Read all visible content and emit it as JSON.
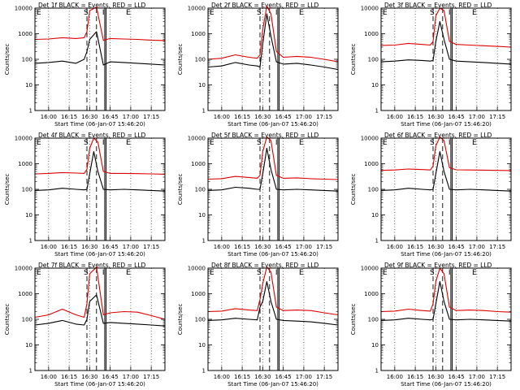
{
  "figure": {
    "y_axis_label": "Counts/sec",
    "x_axis_label": "Start Time (06-Jan-07 15:46:20)",
    "x_tick_labels": [
      "16:00",
      "16:15",
      "16:30",
      "16:45",
      "17:00",
      "17:15"
    ],
    "y_tick_labels": [
      "1",
      "10",
      "100",
      "1000",
      "10000"
    ],
    "marker_letters": [
      "E",
      "S",
      "I",
      "E"
    ],
    "colors": {
      "events": "#000000",
      "lld": "#dd0000",
      "axes": "#000000"
    }
  },
  "chart_data": [
    {
      "type": "line",
      "title": "Det 1f BLACK = Events, RED = LLD",
      "xlabel": "Start Time (06-Jan-07 15:46:20)",
      "ylabel": "Counts/sec",
      "y_scale": "log",
      "ylim": [
        1,
        10000
      ],
      "xlim": [
        "15:50",
        "17:25"
      ],
      "x_ticks": [
        "16:00",
        "16:15",
        "16:30",
        "16:45",
        "17:00",
        "17:15"
      ],
      "dashed_lines": [
        "16:28",
        "16:35"
      ],
      "solid_lines": [
        "16:41",
        "16:42"
      ],
      "series": [
        {
          "name": "Events",
          "color": "#000000",
          "x": [
            "15:50",
            "16:00",
            "16:10",
            "16:20",
            "16:26",
            "16:28",
            "16:30",
            "16:35",
            "16:40",
            "16:45",
            "16:55",
            "17:05",
            "17:15",
            "17:25"
          ],
          "y": [
            70,
            75,
            85,
            70,
            100,
            200,
            600,
            1200,
            60,
            80,
            75,
            70,
            65,
            60
          ]
        },
        {
          "name": "LLD",
          "color": "#dd0000",
          "x": [
            "15:50",
            "16:00",
            "16:10",
            "16:20",
            "16:26",
            "16:28",
            "16:30",
            "16:35",
            "16:40",
            "16:45",
            "16:55",
            "17:05",
            "17:15",
            "17:25"
          ],
          "y": [
            600,
            620,
            700,
            650,
            700,
            1200,
            8000,
            11000,
            550,
            650,
            620,
            600,
            560,
            540
          ]
        }
      ]
    },
    {
      "type": "line",
      "title": "Det 2f BLACK = Events, RED = LLD",
      "xlabel": "Start Time (06-Jan-07 15:46:20)",
      "ylabel": "Counts/sec",
      "y_scale": "log",
      "ylim": [
        1,
        10000
      ],
      "xlim": [
        "15:50",
        "17:25"
      ],
      "x_ticks": [
        "16:00",
        "16:15",
        "16:30",
        "16:45",
        "17:00",
        "17:15"
      ],
      "dashed_lines": [
        "16:28",
        "16:35"
      ],
      "solid_lines": [
        "16:41",
        "16:42"
      ],
      "series": [
        {
          "name": "Events",
          "color": "#000000",
          "x": [
            "15:50",
            "16:00",
            "16:10",
            "16:20",
            "16:26",
            "16:28",
            "16:30",
            "16:33",
            "16:36",
            "16:40",
            "16:45",
            "16:55",
            "17:05",
            "17:15",
            "17:25"
          ],
          "y": [
            50,
            55,
            75,
            60,
            55,
            50,
            400,
            6000,
            800,
            80,
            65,
            70,
            60,
            50,
            40
          ]
        },
        {
          "name": "LLD",
          "color": "#dd0000",
          "x": [
            "15:50",
            "16:00",
            "16:10",
            "16:20",
            "16:26",
            "16:28",
            "16:30",
            "16:33",
            "16:36",
            "16:40",
            "16:45",
            "16:55",
            "17:05",
            "17:15",
            "17:25"
          ],
          "y": [
            100,
            110,
            150,
            120,
            110,
            150,
            1500,
            12000,
            6000,
            200,
            120,
            130,
            120,
            100,
            80
          ]
        }
      ]
    },
    {
      "type": "line",
      "title": "Det 3f BLACK = Events, RED = LLD",
      "xlabel": "Start Time (06-Jan-07 15:46:20)",
      "ylabel": "Counts/sec",
      "y_scale": "log",
      "ylim": [
        1,
        10000
      ],
      "xlim": [
        "15:50",
        "17:25"
      ],
      "x_ticks": [
        "16:00",
        "16:15",
        "16:30",
        "16:45",
        "17:00",
        "17:15"
      ],
      "dashed_lines": [
        "16:28",
        "16:35"
      ],
      "solid_lines": [
        "16:41",
        "16:42"
      ],
      "series": [
        {
          "name": "Events",
          "color": "#000000",
          "x": [
            "15:50",
            "16:00",
            "16:10",
            "16:20",
            "16:26",
            "16:28",
            "16:30",
            "16:33",
            "16:36",
            "16:40",
            "16:45",
            "16:55",
            "17:05",
            "17:15",
            "17:25"
          ],
          "y": [
            80,
            85,
            95,
            90,
            85,
            90,
            500,
            3000,
            600,
            100,
            85,
            80,
            75,
            70,
            65
          ]
        },
        {
          "name": "LLD",
          "color": "#dd0000",
          "x": [
            "15:50",
            "16:00",
            "16:10",
            "16:20",
            "16:26",
            "16:28",
            "16:30",
            "16:33",
            "16:36",
            "16:40",
            "16:45",
            "16:55",
            "17:05",
            "17:15",
            "17:25"
          ],
          "y": [
            350,
            360,
            420,
            380,
            360,
            500,
            5000,
            10000,
            8000,
            500,
            380,
            360,
            340,
            320,
            300
          ]
        }
      ]
    },
    {
      "type": "line",
      "title": "Det 4f BLACK = Events, RED = LLD",
      "xlabel": "Start Time (06-Jan-07 15:46:20)",
      "ylabel": "Counts/sec",
      "y_scale": "log",
      "ylim": [
        1,
        10000
      ],
      "xlim": [
        "15:50",
        "17:25"
      ],
      "x_ticks": [
        "16:00",
        "16:15",
        "16:30",
        "16:45",
        "17:00",
        "17:15"
      ],
      "dashed_lines": [
        "16:28",
        "16:35"
      ],
      "solid_lines": [
        "16:41",
        "16:42"
      ],
      "series": [
        {
          "name": "Events",
          "color": "#000000",
          "x": [
            "15:50",
            "16:00",
            "16:10",
            "16:20",
            "16:26",
            "16:28",
            "16:30",
            "16:33",
            "16:36",
            "16:40",
            "16:45",
            "16:55",
            "17:05",
            "17:15",
            "17:25"
          ],
          "y": [
            90,
            95,
            110,
            100,
            95,
            100,
            400,
            3000,
            500,
            100,
            95,
            100,
            95,
            90,
            85
          ]
        },
        {
          "name": "LLD",
          "color": "#dd0000",
          "x": [
            "15:50",
            "16:00",
            "16:10",
            "16:20",
            "16:26",
            "16:28",
            "16:30",
            "16:33",
            "16:36",
            "16:40",
            "16:45",
            "16:55",
            "17:05",
            "17:15",
            "17:25"
          ],
          "y": [
            400,
            420,
            450,
            430,
            420,
            600,
            4000,
            10000,
            7000,
            500,
            420,
            420,
            410,
            400,
            390
          ]
        }
      ]
    },
    {
      "type": "line",
      "title": "Det 5f BLACK = Events, RED = LLD",
      "xlabel": "Start Time (06-Jan-07 15:46:20)",
      "ylabel": "Counts/sec",
      "y_scale": "log",
      "ylim": [
        1,
        10000
      ],
      "xlim": [
        "15:50",
        "17:25"
      ],
      "x_ticks": [
        "16:00",
        "16:15",
        "16:30",
        "16:45",
        "17:00",
        "17:15"
      ],
      "dashed_lines": [
        "16:28",
        "16:35"
      ],
      "solid_lines": [
        "16:41",
        "16:42"
      ],
      "series": [
        {
          "name": "Events",
          "color": "#000000",
          "x": [
            "15:50",
            "16:00",
            "16:10",
            "16:20",
            "16:26",
            "16:28",
            "16:30",
            "16:33",
            "16:36",
            "16:40",
            "16:45",
            "16:55",
            "17:05",
            "17:15",
            "17:25"
          ],
          "y": [
            90,
            95,
            120,
            110,
            100,
            100,
            400,
            4000,
            600,
            100,
            95,
            100,
            95,
            90,
            85
          ]
        },
        {
          "name": "LLD",
          "color": "#dd0000",
          "x": [
            "15:50",
            "16:00",
            "16:10",
            "16:20",
            "16:26",
            "16:28",
            "16:30",
            "16:33",
            "16:36",
            "16:40",
            "16:45",
            "16:55",
            "17:05",
            "17:15",
            "17:25"
          ],
          "y": [
            250,
            260,
            320,
            290,
            270,
            350,
            3000,
            11000,
            8000,
            350,
            270,
            280,
            260,
            250,
            240
          ]
        }
      ]
    },
    {
      "type": "line",
      "title": "Det 6f BLACK = Events, RED = LLD",
      "xlabel": "Start Time (06-Jan-07 15:46:20)",
      "ylabel": "Counts/sec",
      "y_scale": "log",
      "ylim": [
        1,
        10000
      ],
      "xlim": [
        "15:50",
        "17:25"
      ],
      "x_ticks": [
        "16:00",
        "16:15",
        "16:30",
        "16:45",
        "17:00",
        "17:15"
      ],
      "dashed_lines": [
        "16:28",
        "16:35"
      ],
      "solid_lines": [
        "16:41",
        "16:42"
      ],
      "series": [
        {
          "name": "Events",
          "color": "#000000",
          "x": [
            "15:50",
            "16:00",
            "16:10",
            "16:20",
            "16:26",
            "16:28",
            "16:30",
            "16:33",
            "16:36",
            "16:40",
            "16:45",
            "16:55",
            "17:05",
            "17:15",
            "17:25"
          ],
          "y": [
            90,
            95,
            110,
            100,
            95,
            100,
            400,
            3000,
            500,
            100,
            95,
            100,
            95,
            90,
            85
          ]
        },
        {
          "name": "LLD",
          "color": "#dd0000",
          "x": [
            "15:50",
            "16:00",
            "16:10",
            "16:20",
            "16:26",
            "16:28",
            "16:30",
            "16:33",
            "16:36",
            "16:40",
            "16:45",
            "16:55",
            "17:05",
            "17:15",
            "17:25"
          ],
          "y": [
            550,
            570,
            620,
            590,
            570,
            800,
            5000,
            11000,
            8000,
            700,
            580,
            570,
            560,
            550,
            540
          ]
        }
      ]
    },
    {
      "type": "line",
      "title": "Det 7f BLACK = Events, RED = LLD",
      "xlabel": "Start Time (06-Jan-07 15:46:20)",
      "ylabel": "Counts/sec",
      "y_scale": "log",
      "ylim": [
        1,
        10000
      ],
      "xlim": [
        "15:50",
        "17:25"
      ],
      "x_ticks": [
        "16:00",
        "16:15",
        "16:30",
        "16:45",
        "17:00",
        "17:15"
      ],
      "dashed_lines": [
        "16:28",
        "16:35"
      ],
      "solid_lines": [
        "16:41",
        "16:42"
      ],
      "series": [
        {
          "name": "Events",
          "color": "#000000",
          "x": [
            "15:50",
            "16:00",
            "16:10",
            "16:20",
            "16:26",
            "16:28",
            "16:30",
            "16:35",
            "16:40",
            "16:45",
            "16:55",
            "17:05",
            "17:15",
            "17:25"
          ],
          "y": [
            60,
            70,
            90,
            65,
            60,
            100,
            500,
            900,
            70,
            75,
            70,
            65,
            60,
            55
          ]
        },
        {
          "name": "LLD",
          "color": "#dd0000",
          "x": [
            "15:50",
            "16:00",
            "16:10",
            "16:20",
            "16:26",
            "16:28",
            "16:30",
            "16:35",
            "16:40",
            "16:45",
            "16:55",
            "17:05",
            "17:15",
            "17:25"
          ],
          "y": [
            120,
            150,
            250,
            150,
            120,
            400,
            6000,
            11000,
            150,
            180,
            200,
            190,
            140,
            100
          ]
        }
      ]
    },
    {
      "type": "line",
      "title": "Det 8f BLACK = Events, RED = LLD",
      "xlabel": "Start Time (06-Jan-07 15:46:20)",
      "ylabel": "Counts/sec",
      "y_scale": "log",
      "ylim": [
        1,
        10000
      ],
      "xlim": [
        "15:50",
        "17:25"
      ],
      "x_ticks": [
        "16:00",
        "16:15",
        "16:30",
        "16:45",
        "17:00",
        "17:15"
      ],
      "dashed_lines": [
        "16:28",
        "16:35"
      ],
      "solid_lines": [
        "16:41",
        "16:42"
      ],
      "series": [
        {
          "name": "Events",
          "color": "#000000",
          "x": [
            "15:50",
            "16:00",
            "16:10",
            "16:20",
            "16:26",
            "16:28",
            "16:30",
            "16:33",
            "16:36",
            "16:40",
            "16:45",
            "16:55",
            "17:05",
            "17:15",
            "17:25"
          ],
          "y": [
            90,
            95,
            110,
            100,
            95,
            300,
            500,
            3000,
            500,
            100,
            90,
            85,
            80,
            70,
            60
          ]
        },
        {
          "name": "LLD",
          "color": "#dd0000",
          "x": [
            "15:50",
            "16:00",
            "16:10",
            "16:20",
            "16:26",
            "16:28",
            "16:30",
            "16:33",
            "16:36",
            "16:40",
            "16:45",
            "16:55",
            "17:05",
            "17:15",
            "17:25"
          ],
          "y": [
            200,
            210,
            260,
            230,
            220,
            600,
            2500,
            11000,
            7000,
            300,
            220,
            230,
            220,
            180,
            150
          ]
        }
      ]
    },
    {
      "type": "line",
      "title": "Det 9f BLACK = Events, RED = LLD",
      "xlabel": "Start Time (06-Jan-07 15:46:20)",
      "ylabel": "Counts/sec",
      "y_scale": "log",
      "ylim": [
        1,
        10000
      ],
      "xlim": [
        "15:50",
        "17:25"
      ],
      "x_ticks": [
        "16:00",
        "16:15",
        "16:30",
        "16:45",
        "17:00",
        "17:15"
      ],
      "dashed_lines": [
        "16:28",
        "16:35"
      ],
      "solid_lines": [
        "16:41",
        "16:42"
      ],
      "series": [
        {
          "name": "Events",
          "color": "#000000",
          "x": [
            "15:50",
            "16:00",
            "16:10",
            "16:20",
            "16:26",
            "16:28",
            "16:30",
            "16:33",
            "16:36",
            "16:40",
            "16:45",
            "16:55",
            "17:05",
            "17:15",
            "17:25"
          ],
          "y": [
            90,
            95,
            110,
            100,
            95,
            100,
            400,
            3000,
            500,
            100,
            95,
            100,
            95,
            90,
            85
          ]
        },
        {
          "name": "LLD",
          "color": "#dd0000",
          "x": [
            "15:50",
            "16:00",
            "16:10",
            "16:20",
            "16:26",
            "16:28",
            "16:30",
            "16:33",
            "16:36",
            "16:40",
            "16:45",
            "16:55",
            "17:05",
            "17:15",
            "17:25"
          ],
          "y": [
            200,
            210,
            250,
            220,
            210,
            400,
            3000,
            10000,
            6000,
            300,
            220,
            230,
            220,
            200,
            190
          ]
        }
      ]
    }
  ]
}
